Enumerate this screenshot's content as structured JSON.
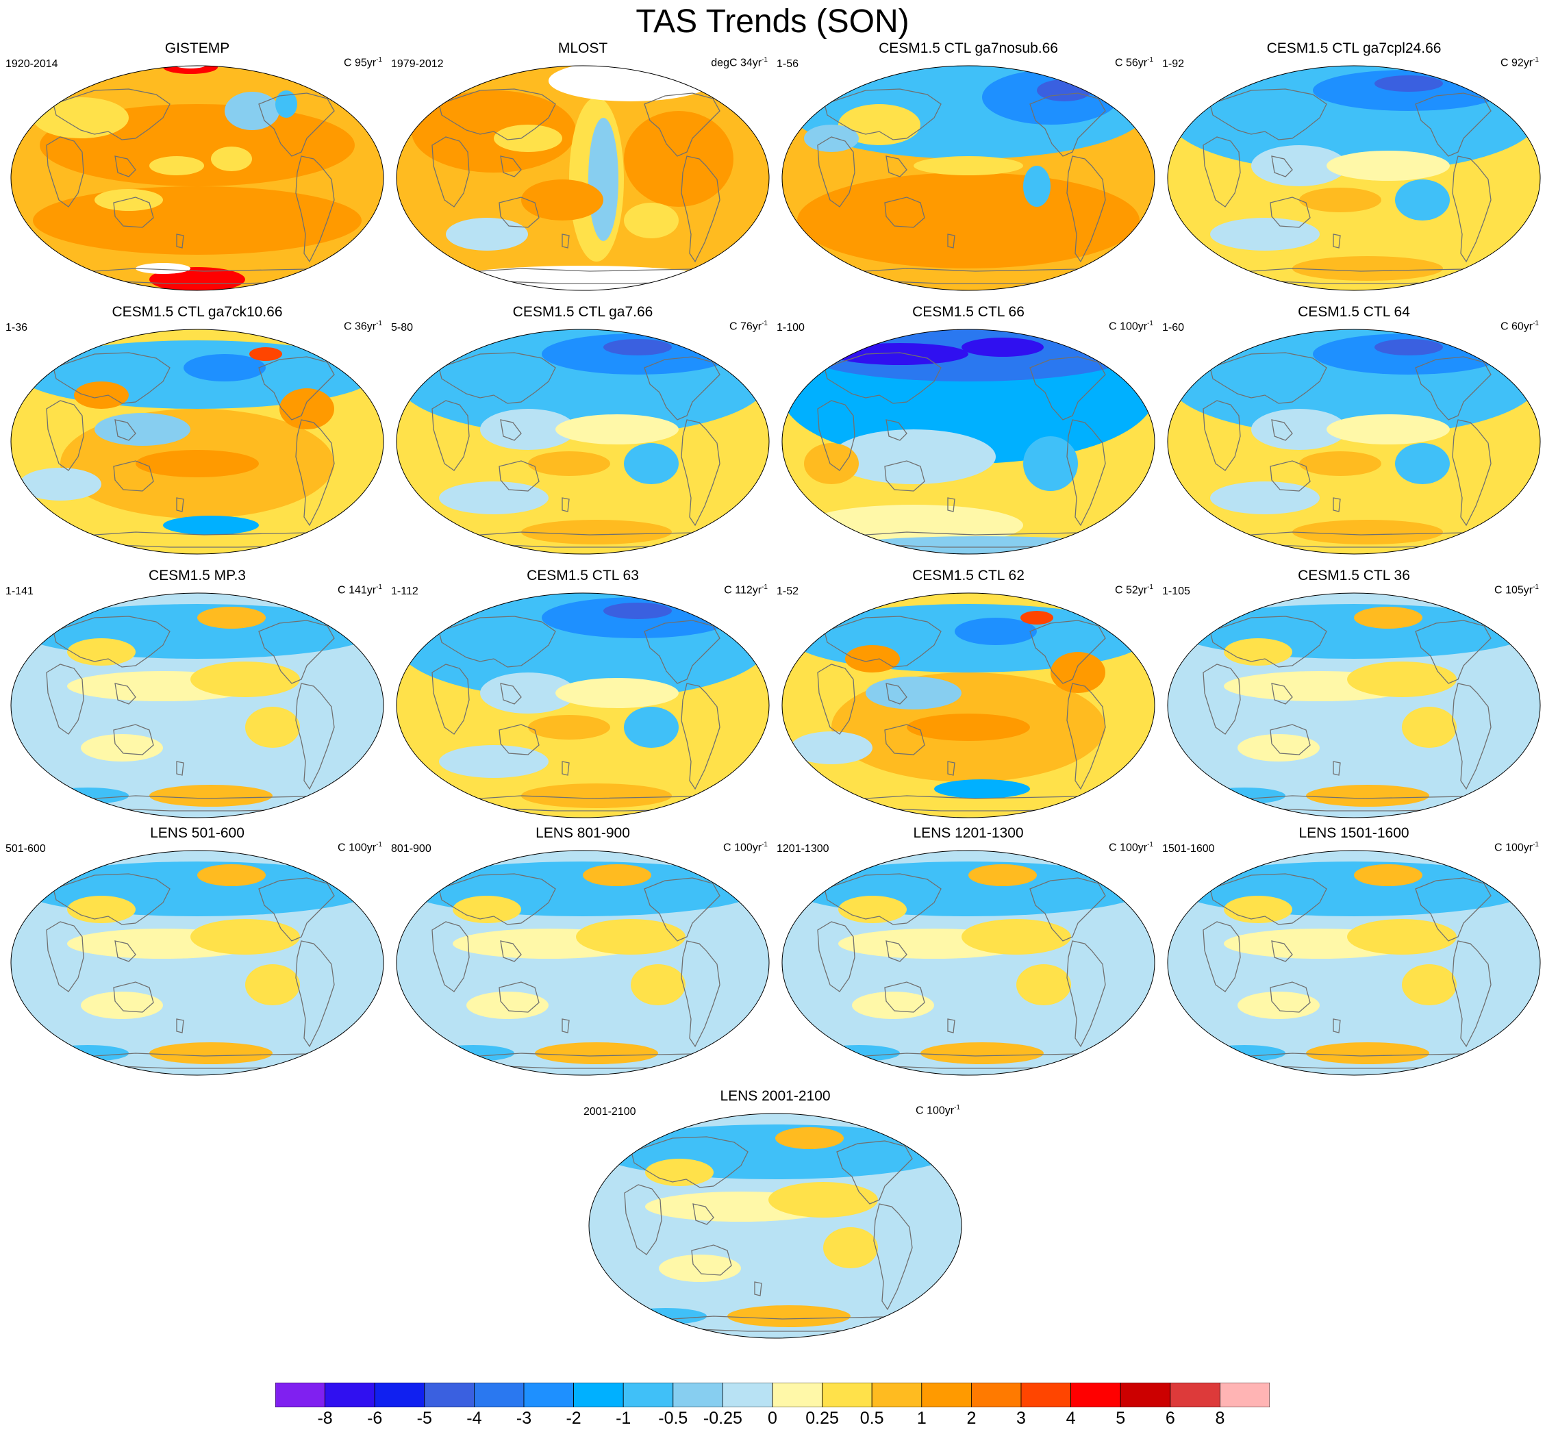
{
  "title": "TAS Trends (SON)",
  "panels": [
    {
      "title": "GISTEMP",
      "left": "1920-2014",
      "units": "C",
      "years": "95",
      "yr": "yr",
      "sup": "-1",
      "style": "warm_obs"
    },
    {
      "title": "MLOST",
      "left": "1979-2012",
      "units": "degC",
      "years": "34",
      "yr": "yr",
      "sup": "-1",
      "style": "mlost"
    },
    {
      "title": "CESM1.5 CTL ga7nosub.66",
      "left": "1-56",
      "units": "C",
      "years": "56",
      "yr": "yr",
      "sup": "-1",
      "style": "warm_south"
    },
    {
      "title": "CESM1.5 CTL ga7cpl24.66",
      "left": "1-92",
      "units": "C",
      "years": "92",
      "yr": "yr",
      "sup": "-1",
      "style": "cool_north"
    },
    {
      "title": "CESM1.5 CTL ga7ck10.66",
      "left": "1-36",
      "units": "C",
      "years": "36",
      "yr": "yr",
      "sup": "-1",
      "style": "warm_mixed"
    },
    {
      "title": "CESM1.5 CTL ga7.66",
      "left": "5-80",
      "units": "C",
      "years": "76",
      "yr": "yr",
      "sup": "-1",
      "style": "cool_north"
    },
    {
      "title": "CESM1.5 CTL 66",
      "left": "1-100",
      "units": "C",
      "years": "100",
      "yr": "yr",
      "sup": "-1",
      "style": "cold_north"
    },
    {
      "title": "CESM1.5 CTL 64",
      "left": "1-60",
      "units": "C",
      "years": "60",
      "yr": "yr",
      "sup": "-1",
      "style": "cool_north"
    },
    {
      "title": "CESM1.5 MP.3",
      "left": "1-141",
      "units": "C",
      "years": "141",
      "yr": "yr",
      "sup": "-1",
      "style": "neutral"
    },
    {
      "title": "CESM1.5 CTL 63",
      "left": "1-112",
      "units": "C",
      "years": "112",
      "yr": "yr",
      "sup": "-1",
      "style": "cool_north"
    },
    {
      "title": "CESM1.5 CTL 62",
      "left": "1-52",
      "units": "C",
      "years": "52",
      "yr": "yr",
      "sup": "-1",
      "style": "warm_mixed"
    },
    {
      "title": "CESM1.5 CTL 36",
      "left": "1-105",
      "units": "C",
      "years": "105",
      "yr": "yr",
      "sup": "-1",
      "style": "neutral"
    },
    {
      "title": "LENS 501-600",
      "left": "501-600",
      "units": "C",
      "years": "100",
      "yr": "yr",
      "sup": "-1",
      "style": "neutral"
    },
    {
      "title": "LENS 801-900",
      "left": "801-900",
      "units": "C",
      "years": "100",
      "yr": "yr",
      "sup": "-1",
      "style": "neutral"
    },
    {
      "title": "LENS 1201-1300",
      "left": "1201-1300",
      "units": "C",
      "years": "100",
      "yr": "yr",
      "sup": "-1",
      "style": "neutral"
    },
    {
      "title": "LENS 1501-1600",
      "left": "1501-1600",
      "units": "C",
      "years": "100",
      "yr": "yr",
      "sup": "-1",
      "style": "neutral"
    },
    {
      "title": "LENS 2001-2100",
      "left": "2001-2100",
      "units": "C",
      "years": "100",
      "yr": "yr",
      "sup": "-1",
      "style": "neutral"
    }
  ],
  "colorbar": {
    "colors": [
      "#8020f0",
      "#3010f0",
      "#1020f0",
      "#3a60e0",
      "#2a78f0",
      "#1e90ff",
      "#00b0ff",
      "#40c0f8",
      "#87cef0",
      "#b8e2f4",
      "#fff8a8",
      "#ffe14a",
      "#ffbb20",
      "#ff9a00",
      "#ff7a00",
      "#ff4500",
      "#ff0000",
      "#cc0000",
      "#dd3a3a",
      "#ffb4b4"
    ],
    "labels": [
      "-8",
      "-6",
      "-5",
      "-4",
      "-3",
      "-2",
      "-1",
      "-0.5",
      "-0.25",
      "0",
      "0.25",
      "0.5",
      "1",
      "2",
      "3",
      "4",
      "5",
      "6",
      "8"
    ]
  }
}
